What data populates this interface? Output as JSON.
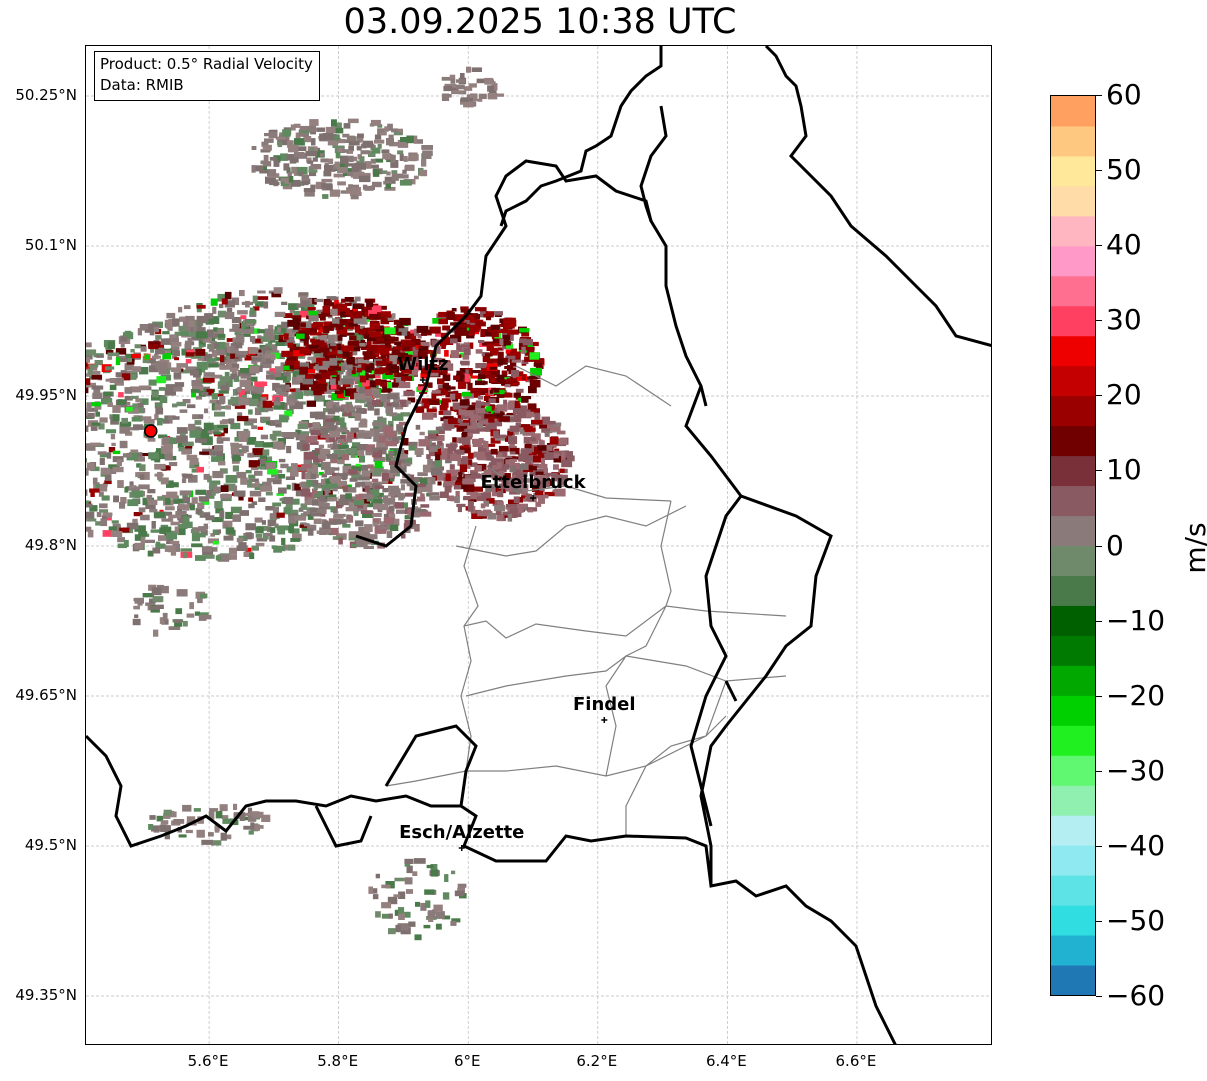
{
  "title": "03.09.2025 10:38 UTC",
  "info_box": {
    "product": "Product: 0.5° Radial Velocity",
    "data": "Data: RMIB"
  },
  "map": {
    "lon_range": [
      5.41,
      6.81
    ],
    "lat_range": [
      49.3,
      50.3
    ],
    "lat_ticks": [
      "50.25°N",
      "50.1°N",
      "49.95°N",
      "49.8°N",
      "49.65°N",
      "49.5°N",
      "49.35°N"
    ],
    "lon_ticks": [
      "5.6°E",
      "5.8°E",
      "6°E",
      "6.2°E",
      "6.4°E",
      "6.6°E"
    ],
    "grid": true,
    "radar_site": {
      "lon": 5.51,
      "lat": 49.915,
      "color": "#ff0000"
    },
    "cities": [
      {
        "name": "Wiltz",
        "lon": 5.93,
        "lat": 49.966
      },
      {
        "name": "Ettelbruck",
        "lon": 6.1,
        "lat": 49.848
      },
      {
        "name": "Findel",
        "lon": 6.21,
        "lat": 49.626
      },
      {
        "name": "Esch/Alzette",
        "lon": 5.99,
        "lat": 49.498
      }
    ]
  },
  "colorbar": {
    "label": "m/s",
    "ticks": [
      "60",
      "50",
      "40",
      "30",
      "20",
      "10",
      "0",
      "−10",
      "−20",
      "−30",
      "−40",
      "−50",
      "−60"
    ],
    "range": [
      -60,
      60
    ],
    "colors": [
      "#1f77b4",
      "#20b2d0",
      "#30dde0",
      "#5de3e6",
      "#8eeaf0",
      "#b5eef2",
      "#90f0b0",
      "#60f870",
      "#20f020",
      "#00d000",
      "#00a800",
      "#007a00",
      "#006000",
      "#4a7a4a",
      "#6f8a6b",
      "#8a7a7a",
      "#8a5a62",
      "#7a3038",
      "#700000",
      "#9a0000",
      "#c40000",
      "#ee0000",
      "#ff4060",
      "#ff7090",
      "#ff9ac8",
      "#ffb6c0",
      "#ffdca8",
      "#ffe89a",
      "#ffc880",
      "#ffa060"
    ]
  }
}
